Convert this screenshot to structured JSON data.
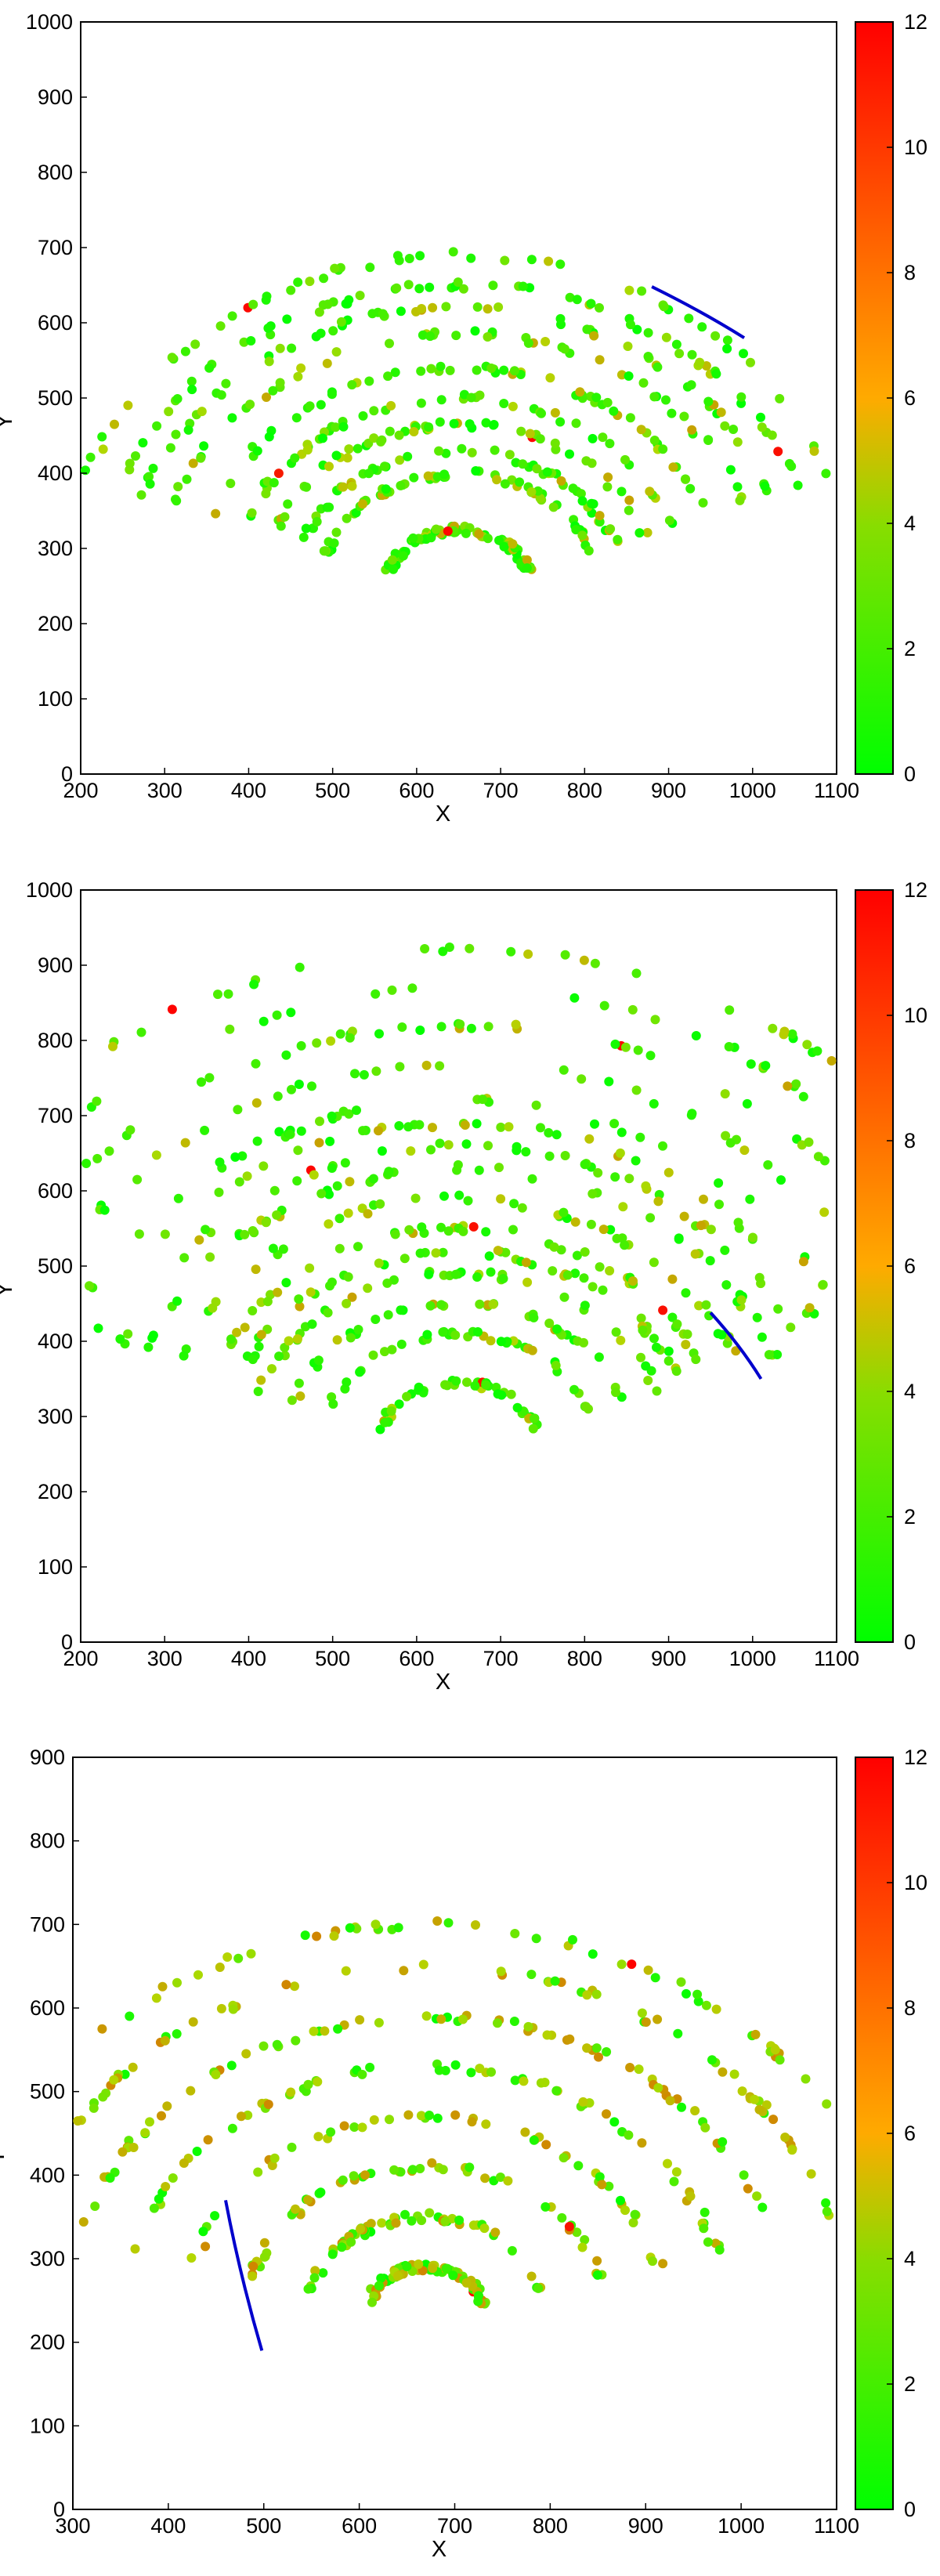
{
  "colors": {
    "low": "#00ff00",
    "mid": "#aacc00",
    "high": "#ff0000",
    "track_line": "#0000cc",
    "frame": "#000000"
  },
  "chart_data": [
    {
      "type": "scatter",
      "title": "",
      "xlabel": "X",
      "ylabel": "Y",
      "xlim": [
        200,
        1100
      ],
      "ylim": [
        0,
        1000
      ],
      "xticks": [
        200,
        300,
        400,
        500,
        600,
        700,
        800,
        900,
        1000,
        1100
      ],
      "yticks": [
        0,
        100,
        200,
        300,
        400,
        500,
        600,
        700,
        800,
        900,
        1000
      ],
      "colorbar": {
        "range": [
          0,
          12
        ],
        "ticks": [
          0,
          2,
          4,
          6,
          8,
          10,
          12
        ]
      },
      "grid": false,
      "structure": {
        "center": [
          650,
          240
        ],
        "ring_radii": [
          85,
          160,
          190,
          225,
          260,
          300,
          345,
          380,
          410,
          450
        ],
        "arc_from_deg": 200,
        "arc_to_deg": 340,
        "point_count": 600
      },
      "highlight": [
        [
          880,
          648
        ],
        [
          940,
          615
        ],
        [
          990,
          580
        ]
      ]
    },
    {
      "type": "scatter",
      "title": "",
      "xlabel": "X",
      "ylabel": "Y",
      "xlim": [
        200,
        1100
      ],
      "ylim": [
        0,
        1000
      ],
      "xticks": [
        200,
        300,
        400,
        500,
        600,
        700,
        800,
        900,
        1000,
        1100
      ],
      "yticks": [
        0,
        100,
        200,
        300,
        400,
        500,
        600,
        700,
        800,
        900,
        1000
      ],
      "colorbar": {
        "range": [
          0,
          12
        ],
        "ticks": [
          0,
          2,
          4,
          6,
          8,
          10,
          12
        ]
      },
      "grid": false,
      "structure": {
        "center": [
          650,
          250
        ],
        "ring_radii": [
          95,
          160,
          200,
          240,
          270,
          300,
          340,
          380,
          410,
          440,
          470,
          520,
          570,
          620,
          670
        ],
        "arc_from_deg": 200,
        "arc_to_deg": 340,
        "point_count": 700
      },
      "highlight": [
        [
          950,
          438
        ],
        [
          985,
          395
        ],
        [
          1010,
          350
        ]
      ]
    },
    {
      "type": "scatter",
      "title": "",
      "xlabel": "X",
      "ylabel": "Y",
      "xlim": [
        300,
        1100
      ],
      "ylim": [
        0,
        900
      ],
      "xticks": [
        300,
        400,
        500,
        600,
        700,
        800,
        900,
        1000,
        1100
      ],
      "yticks": [
        0,
        100,
        200,
        300,
        400,
        500,
        600,
        700,
        800,
        900
      ],
      "colorbar": {
        "range": [
          0,
          12
        ],
        "ticks": [
          0,
          2,
          4,
          6,
          8,
          10,
          12
        ]
      },
      "grid": false,
      "structure": {
        "center": [
          670,
          230
        ],
        "ring_radii": [
          60,
          120,
          180,
          240,
          300,
          360,
          420,
          470
        ],
        "arc_from_deg": 195,
        "arc_to_deg": 345,
        "point_count": 520
      },
      "highlight": [
        [
          460,
          370
        ],
        [
          475,
          280
        ],
        [
          498,
          190
        ]
      ]
    }
  ]
}
